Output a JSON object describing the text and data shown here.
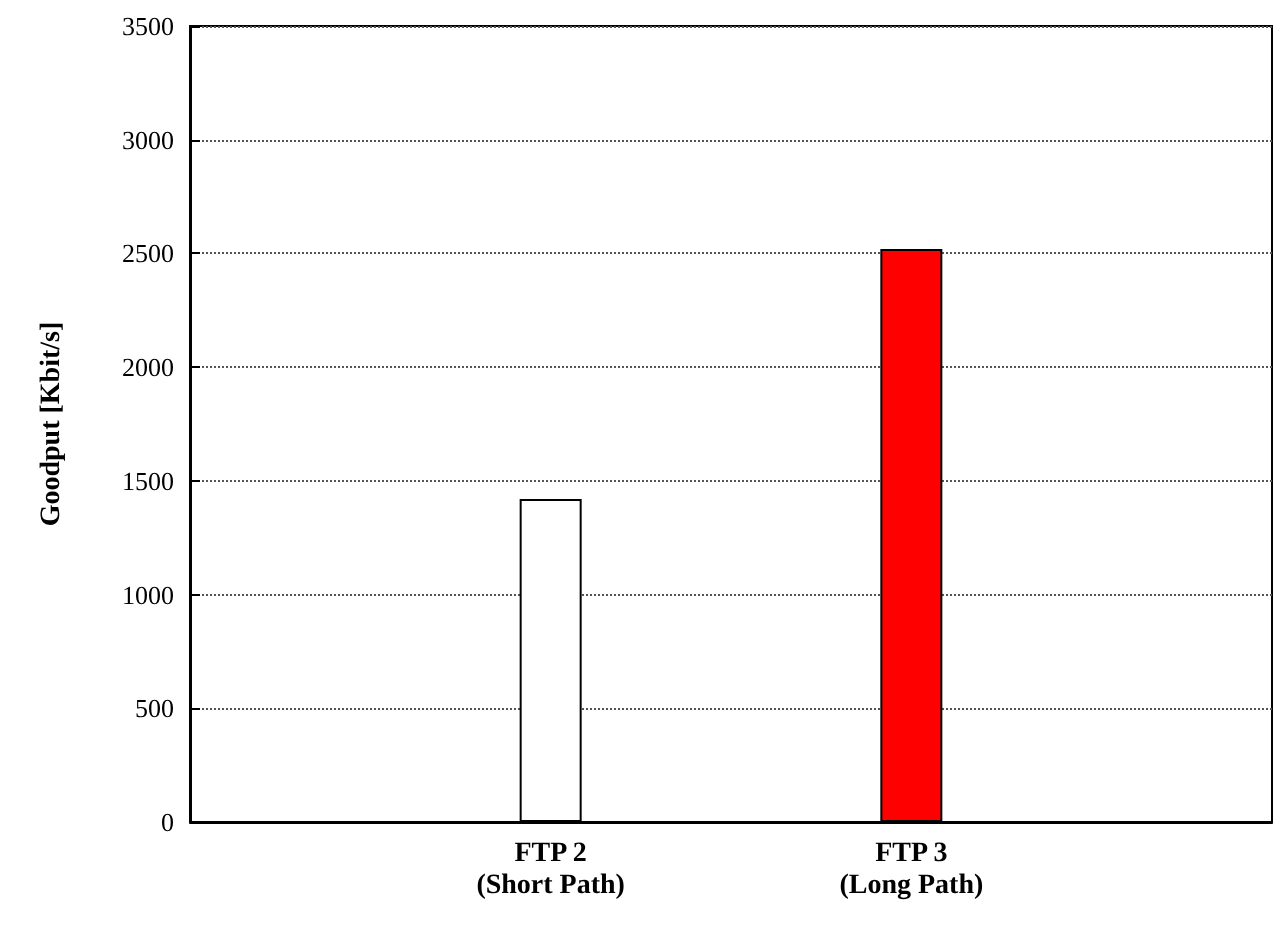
{
  "chart_data": {
    "type": "bar",
    "ylabel": "Goodput [Kbit/s]",
    "categories": [
      "FTP 2\n(Short Path)",
      "FTP 3\n(Long Path)"
    ],
    "values": [
      1420,
      2520
    ],
    "colors": [
      "#ffffff",
      "#ff0000"
    ],
    "ylim": [
      0,
      3500
    ],
    "yticks": [
      0,
      500,
      1000,
      1500,
      2000,
      2500,
      3000,
      3500
    ],
    "grid": "y"
  }
}
